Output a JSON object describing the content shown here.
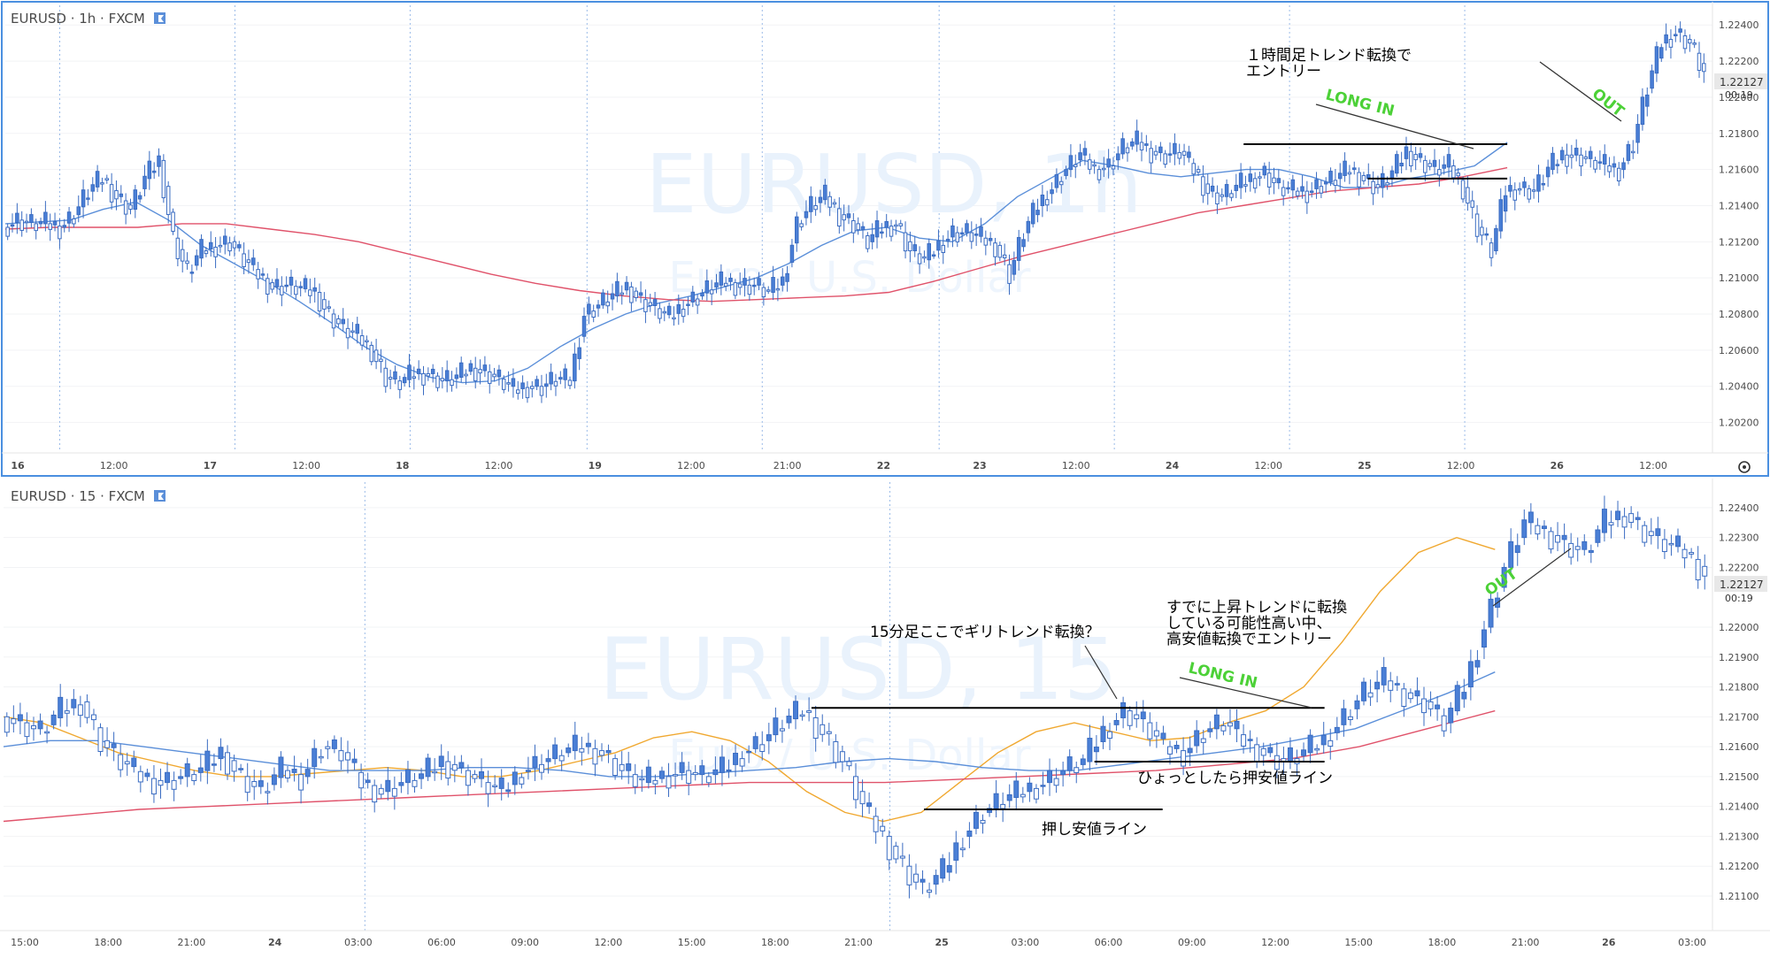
{
  "panels": [
    {
      "id": "h1",
      "symbol_label": "EURUSD · 1h · FXCM",
      "watermark": "EURUSD, 1h",
      "watermark_sub": "Euro / U.S. Dollar",
      "price_badge": "1.22127",
      "time_badge": "00:19"
    },
    {
      "id": "m15",
      "symbol_label": "EURUSD · 15 · FXCM",
      "watermark": "EURUSD, 15",
      "watermark_sub": "Euro / U.S. Dollar",
      "price_badge": "1.22127",
      "time_badge": "00:19"
    }
  ],
  "chart_data": [
    {
      "type": "candlestick",
      "title": "EURUSD · 1h · FXCM",
      "ylim": [
        1.201,
        1.2245
      ],
      "y_ticks": [
        "1.22400",
        "1.22200",
        "1.22000",
        "1.21800",
        "1.21600",
        "1.21400",
        "1.21200",
        "1.21000",
        "1.20800",
        "1.20600",
        "1.20400",
        "1.20200"
      ],
      "x_ticks": [
        "16",
        "12:00",
        "17",
        "12:00",
        "18",
        "12:00",
        "19",
        "12:00",
        "21:00",
        "22",
        "23",
        "12:00",
        "24",
        "12:00",
        "25",
        "12:00",
        "26",
        "12:00"
      ],
      "ohlc_path": [
        1.2128,
        1.2132,
        1.213,
        1.213,
        1.2128,
        1.2135,
        1.2148,
        1.2155,
        1.2145,
        1.2138,
        1.2155,
        1.2165,
        1.2122,
        1.2103,
        1.2115,
        1.2118,
        1.212,
        1.211,
        1.2102,
        1.2095,
        1.2096,
        1.2094,
        1.2092,
        1.208,
        1.2072,
        1.2068,
        1.206,
        1.2045,
        1.2042,
        1.2047,
        1.2047,
        1.2043,
        1.2045,
        1.205,
        1.2048,
        1.2044,
        1.2038,
        1.204,
        1.204,
        1.2044,
        1.2043,
        1.208,
        1.2085,
        1.209,
        1.2095,
        1.2088,
        1.2083,
        1.2078,
        1.2085,
        1.209,
        1.2095,
        1.2098,
        1.2096,
        1.2096,
        1.2092,
        1.2098,
        1.213,
        1.214,
        1.2145,
        1.2135,
        1.213,
        1.212,
        1.2128,
        1.213,
        1.2115,
        1.211,
        1.2118,
        1.2125,
        1.2125,
        1.2122,
        1.2118,
        1.2102,
        1.2125,
        1.214,
        1.215,
        1.216,
        1.2168,
        1.216,
        1.2162,
        1.2172,
        1.2175,
        1.217,
        1.2168,
        1.217,
        1.216,
        1.2148,
        1.2145,
        1.215,
        1.2155,
        1.2158,
        1.215,
        1.2148,
        1.2148,
        1.2152,
        1.2155,
        1.216,
        1.2155,
        1.215,
        1.2158,
        1.217,
        1.2165,
        1.216,
        1.2162,
        1.215,
        1.2128,
        1.2115,
        1.2148,
        1.215,
        1.2148,
        1.216,
        1.2168,
        1.2168,
        1.2165,
        1.2162,
        1.216,
        1.2175,
        1.2205,
        1.223,
        1.2236,
        1.223,
        1.2213
      ],
      "ohlc_wick": 0.0007,
      "overlays": [
        {
          "name": "MA short",
          "color": "#5b8fd9",
          "values": [
            1.213,
            1.2131,
            1.2132,
            1.2138,
            1.2142,
            1.2132,
            1.2118,
            1.2108,
            1.2098,
            1.2087,
            1.2075,
            1.2062,
            1.2052,
            1.2045,
            1.2042,
            1.2043,
            1.205,
            1.2062,
            1.2072,
            1.208,
            1.2086,
            1.209,
            1.2095,
            1.21,
            1.2108,
            1.2118,
            1.2126,
            1.2128,
            1.2122,
            1.212,
            1.213,
            1.2145,
            1.2155,
            1.2165,
            1.2162,
            1.2158,
            1.2156,
            1.2158,
            1.216,
            1.216,
            1.2156,
            1.215,
            1.215,
            1.2155,
            1.2158,
            1.2162,
            1.2175
          ]
        },
        {
          "name": "MA long",
          "color": "#e0526a",
          "values": [
            1.2127,
            1.2128,
            1.2128,
            1.2128,
            1.213,
            1.213,
            1.2127,
            1.2124,
            1.212,
            1.2114,
            1.2108,
            1.2102,
            1.2097,
            1.2093,
            1.209,
            1.2088,
            1.2087,
            1.2088,
            1.2089,
            1.209,
            1.2092,
            1.2098,
            1.2105,
            1.2112,
            1.2118,
            1.2124,
            1.213,
            1.2136,
            1.214,
            1.2144,
            1.2148,
            1.215,
            1.2152,
            1.2156,
            1.2161
          ]
        }
      ],
      "lines": [
        {
          "label": "upper",
          "price": 1.2174,
          "from": 0.728,
          "to": 0.883
        },
        {
          "label": "lower",
          "price": 1.2155,
          "from": 0.801,
          "to": 0.883
        }
      ],
      "annotations": [
        {
          "text": "１時間足トレンド転換で",
          "color": "#000000"
        },
        {
          "text": "エントリー",
          "color": "#000000"
        },
        {
          "text": "LONG IN",
          "color": "#4cd137"
        },
        {
          "text": "OUT",
          "color": "#4cd137"
        }
      ]
    },
    {
      "type": "candlestick",
      "title": "EURUSD · 15 · FXCM",
      "ylim": [
        1.2102,
        1.2245
      ],
      "y_ticks": [
        "1.22400",
        "1.22300",
        "1.22200",
        "1.22000",
        "1.21900",
        "1.21800",
        "1.21700",
        "1.21600",
        "1.21500",
        "1.21400",
        "1.21300",
        "1.21200",
        "1.21100"
      ],
      "x_ticks": [
        "15:00",
        "18:00",
        "21:00",
        "24",
        "03:00",
        "06:00",
        "09:00",
        "12:00",
        "15:00",
        "18:00",
        "21:00",
        "25",
        "03:00",
        "06:00",
        "09:00",
        "12:00",
        "15:00",
        "18:00",
        "21:00",
        "26",
        "03:00"
      ],
      "ohlc_path": [
        1.217,
        1.2168,
        1.2165,
        1.2172,
        1.2175,
        1.2162,
        1.2155,
        1.215,
        1.2148,
        1.215,
        1.2152,
        1.2158,
        1.215,
        1.2145,
        1.2152,
        1.215,
        1.216,
        1.2158,
        1.2148,
        1.2145,
        1.2148,
        1.215,
        1.2155,
        1.2152,
        1.2148,
        1.2145,
        1.2152,
        1.2155,
        1.2158,
        1.216,
        1.2158,
        1.2152,
        1.2148,
        1.215,
        1.2152,
        1.215,
        1.2152,
        1.2158,
        1.2162,
        1.2168,
        1.2172,
        1.2165,
        1.2155,
        1.214,
        1.213,
        1.212,
        1.2112,
        1.2118,
        1.213,
        1.2138,
        1.2142,
        1.2145,
        1.2148,
        1.2152,
        1.2155,
        1.2165,
        1.2172,
        1.2168,
        1.216,
        1.2158,
        1.2165,
        1.2168,
        1.2162,
        1.2158,
        1.2155,
        1.2158,
        1.2162,
        1.217,
        1.2178,
        1.2182,
        1.2178,
        1.2175,
        1.2168,
        1.218,
        1.22,
        1.222,
        1.2235,
        1.2232,
        1.2228,
        1.2225,
        1.2235,
        1.2238,
        1.2232,
        1.2228,
        1.2225,
        1.2218
      ],
      "ohlc_wick": 0.0005,
      "overlays": [
        {
          "name": "MA short",
          "color": "#f0a830",
          "values": [
            1.217,
            1.2168,
            1.2163,
            1.2158,
            1.2155,
            1.2152,
            1.215,
            1.215,
            1.2151,
            1.2152,
            1.2153,
            1.2152,
            1.215,
            1.215,
            1.2152,
            1.2155,
            1.2158,
            1.2163,
            1.2165,
            1.2162,
            1.2155,
            1.2145,
            1.2138,
            1.2135,
            1.2138,
            1.2148,
            1.2158,
            1.2165,
            1.2168,
            1.2165,
            1.2162,
            1.2163,
            1.2168,
            1.2172,
            1.218,
            1.2195,
            1.2212,
            1.2225,
            1.223,
            1.2226
          ]
        },
        {
          "name": "MA mid",
          "color": "#5b8fd9",
          "values": [
            1.216,
            1.2162,
            1.2162,
            1.216,
            1.2158,
            1.2156,
            1.2154,
            1.2152,
            1.2152,
            1.2152,
            1.2153,
            1.2153,
            1.2152,
            1.215,
            1.215,
            1.2151,
            1.2152,
            1.2153,
            1.2155,
            1.2156,
            1.2155,
            1.2153,
            1.2152,
            1.2152,
            1.2154,
            1.2156,
            1.2158,
            1.216,
            1.2163,
            1.2166,
            1.2172,
            1.2178,
            1.2185
          ]
        },
        {
          "name": "MA long",
          "color": "#e0526a",
          "values": [
            1.2135,
            1.2137,
            1.2139,
            1.214,
            1.2141,
            1.2142,
            1.2143,
            1.2144,
            1.2145,
            1.2146,
            1.2147,
            1.2148,
            1.2148,
            1.2148,
            1.2149,
            1.215,
            1.2151,
            1.2152,
            1.2154,
            1.2156,
            1.216,
            1.2166,
            1.2172
          ]
        }
      ],
      "lines": [
        {
          "label": "neck",
          "price": 1.2173,
          "from": 0.474,
          "to": 0.775
        },
        {
          "label": "high-low",
          "price": 1.2155,
          "from": 0.64,
          "to": 0.775
        },
        {
          "label": "low",
          "price": 1.2139,
          "from": 0.54,
          "to": 0.68
        }
      ],
      "annotations": [
        {
          "text": "15分足ここでギリトレンド転換？",
          "color": "#000000"
        },
        {
          "text": "すでに上昇トレンドに転換",
          "color": "#000000"
        },
        {
          "text": "している可能性高い中、",
          "color": "#000000"
        },
        {
          "text": "高安値転換でエントリー",
          "color": "#000000"
        },
        {
          "text": "LONG IN",
          "color": "#4cd137"
        },
        {
          "text": "OUT",
          "color": "#4cd137"
        },
        {
          "text": "ひょっとしたら押安値ライン",
          "color": "#000000"
        },
        {
          "text": "押し安値ライン",
          "color": "#000000"
        }
      ]
    }
  ],
  "colors": {
    "up_candle": "#4a7fd6",
    "down_candle": "#ffffff",
    "candle_border": "#3a6cc2",
    "axis_text": "#4a4a4a",
    "grid": "#f2f3f5",
    "session_line": "#9bbbe8",
    "frame_active": "#4a8fe0",
    "badge_bg": "#e8e8e8",
    "watermark": "#e9f2fc",
    "annotation_green": "#4cd137"
  },
  "icons": [
    "flag-icon",
    "gear-icon"
  ]
}
